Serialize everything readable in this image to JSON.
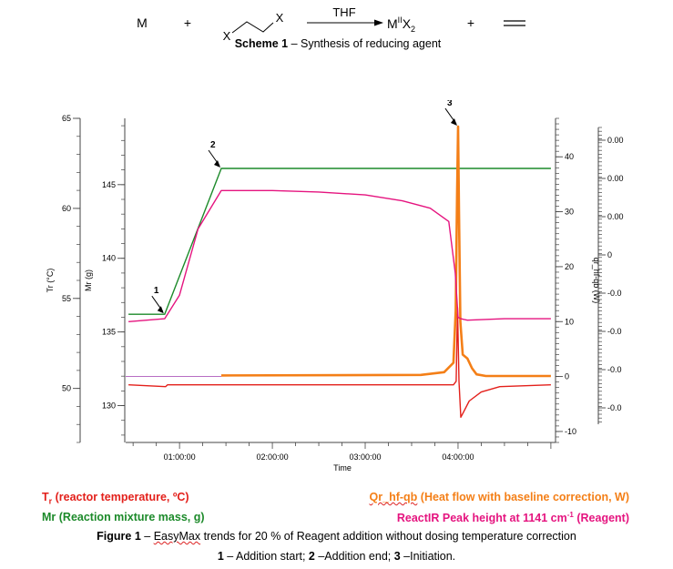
{
  "scheme": {
    "reactant_m": "M",
    "plus": "+",
    "reactant_x1": "X",
    "reactant_x2": "X",
    "solvent": "THF",
    "product_m": "M",
    "product_ox": "II",
    "product_x": "X",
    "product_sub": "2",
    "caption_label": "Scheme 1",
    "caption_text": " – Synthesis of reducing agent"
  },
  "chart_data": {
    "type": "line",
    "xlabel": "Time",
    "x_ticks": [
      "01:00:00",
      "02:00:00",
      "03:00:00",
      "04:00:00"
    ],
    "axes": {
      "tr": {
        "label": "Tr (°C)",
        "ticks": [
          "65",
          "60",
          "55",
          "50"
        ],
        "range": [
          47,
          65
        ]
      },
      "mr": {
        "label": "Mr (g)",
        "ticks": [
          "145",
          "140",
          "135",
          "130"
        ],
        "range": [
          127.5,
          149.5
        ]
      },
      "qr": {
        "label": "qr_hf-qb (W)",
        "ticks": [
          "40",
          "30",
          "20",
          "10",
          "0",
          "-10"
        ],
        "range": [
          -12,
          47
        ]
      },
      "ir": {
        "label": "",
        "ticks": [
          "0.00",
          "0.00",
          "0.00",
          "0",
          "-0.0",
          "-0.0",
          "-0.0",
          "-0.0"
        ]
      }
    },
    "x_range_h": [
      0.42,
      5.05
    ],
    "series": [
      {
        "name": "Tr",
        "color": "#e3201b",
        "axis": "tr",
        "x": [
          0.45,
          0.85,
          0.87,
          3.95,
          3.98,
          3.995,
          4.01,
          4.03,
          4.06,
          4.12,
          4.25,
          4.45,
          5.0
        ],
        "y": [
          50.2,
          50.1,
          50.2,
          50.2,
          50.4,
          54.5,
          50.4,
          48.4,
          48.7,
          49.3,
          49.8,
          50.1,
          50.2
        ]
      },
      {
        "name": "Mr",
        "color": "#1c8a2a",
        "axis": "mr",
        "x": [
          0.45,
          0.84,
          1.45,
          5.0
        ],
        "y": [
          136.2,
          136.2,
          146.1,
          146.1
        ]
      },
      {
        "name": "Qr",
        "color": "#f47f17",
        "axis": "qr",
        "x": [
          1.45,
          3.6,
          3.85,
          3.95,
          3.975,
          3.99,
          4.0,
          4.01,
          4.025,
          4.05,
          4.1,
          4.15,
          4.2,
          4.3,
          4.5,
          5.0
        ],
        "y": [
          0.2,
          0.3,
          0.8,
          2.5,
          12,
          33,
          45.5,
          30,
          10,
          4,
          3.3,
          1.5,
          0.4,
          0.1,
          0.1,
          0.1
        ]
      },
      {
        "name": "IR",
        "color": "#e5147f",
        "axis": "mr",
        "x": [
          0.45,
          0.84,
          1.0,
          1.2,
          1.45,
          2.0,
          2.5,
          3.0,
          3.4,
          3.7,
          3.9,
          3.97,
          4.0,
          4.03,
          4.1,
          4.5,
          5.0
        ],
        "y": [
          135.7,
          135.9,
          137.5,
          142.0,
          144.6,
          144.6,
          144.5,
          144.3,
          143.9,
          143.4,
          142.5,
          139.0,
          136.0,
          135.9,
          135.8,
          135.9,
          135.9
        ]
      }
    ],
    "baseline_qr": 0,
    "annotations": [
      {
        "label": "1",
        "x": 0.84,
        "y_mr": 136.2
      },
      {
        "label": "2",
        "x": 1.45,
        "y_mr": 146.1
      },
      {
        "label": "3",
        "x": 4.0,
        "y_qr": 45.5
      }
    ]
  },
  "legend": {
    "tr_symbol": "T",
    "tr_sub": "r",
    "tr_text": " (reactor temperature, ºC)",
    "qr_symbol": "Qr_hf-qb",
    "qr_text": " (Heat flow with baseline correction, W)",
    "mr_text": "Mr (Reaction mixture mass, g)",
    "ir_text": "ReactIR Peak height at 1141 cm",
    "ir_sup": "-1",
    "ir_tail": " (Reagent)"
  },
  "figure": {
    "label": "Figure 1",
    "text_pre": " – ",
    "easymax": "EasyMax",
    "text_post": " trends for 20 % of Reagent addition without dosing temperature correction",
    "n1": "1",
    "t1": " – Addition start; ",
    "n2": "2",
    "t2": " –Addition end; ",
    "n3": "3",
    "t3": " –Initiation."
  }
}
